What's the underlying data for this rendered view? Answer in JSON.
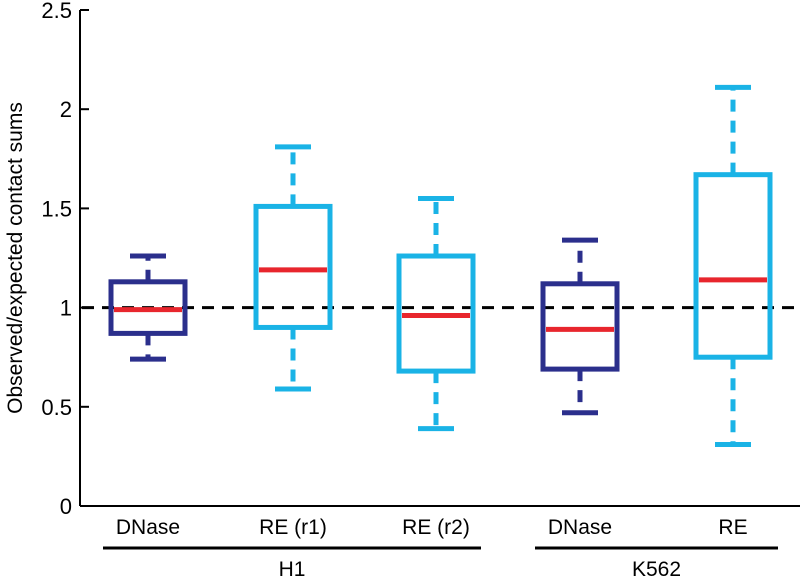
{
  "chart_data": {
    "type": "boxplot",
    "title": "",
    "xlabel": "",
    "ylabel": "Observed/expected contact sums",
    "ylim": [
      0,
      2.5
    ],
    "yticks": [
      {
        "value": 0,
        "label": "0"
      },
      {
        "value": 0.5,
        "label": "0.5"
      },
      {
        "value": 1,
        "label": "1"
      },
      {
        "value": 1.5,
        "label": "1.5"
      },
      {
        "value": 2,
        "label": "2"
      },
      {
        "value": 2.5,
        "label": "2.5"
      }
    ],
    "reference_line": {
      "value": 1,
      "style": "dashed",
      "color": "#000000"
    },
    "colors": {
      "dnase": "#2b2f8c",
      "re": "#1ab3e6",
      "median": "#e8262d",
      "axis": "#000000"
    },
    "boxes": [
      {
        "label": "DNase",
        "group": "H1",
        "color_key": "dnase",
        "whisker_low": 0.74,
        "q1": 0.87,
        "median": 0.99,
        "q3": 1.13,
        "whisker_high": 1.26
      },
      {
        "label": "RE (r1)",
        "group": "H1",
        "color_key": "re",
        "whisker_low": 0.59,
        "q1": 0.9,
        "median": 1.19,
        "q3": 1.51,
        "whisker_high": 1.81
      },
      {
        "label": "RE (r2)",
        "group": "H1",
        "color_key": "re",
        "whisker_low": 0.39,
        "q1": 0.68,
        "median": 0.96,
        "q3": 1.26,
        "whisker_high": 1.55
      },
      {
        "label": "DNase",
        "group": "K562",
        "color_key": "dnase",
        "whisker_low": 0.47,
        "q1": 0.69,
        "median": 0.89,
        "q3": 1.12,
        "whisker_high": 1.34
      },
      {
        "label": "RE",
        "group": "K562",
        "color_key": "re",
        "whisker_low": 0.31,
        "q1": 0.75,
        "median": 1.14,
        "q3": 1.67,
        "whisker_high": 2.11
      }
    ],
    "groups": [
      {
        "label": "H1",
        "boxes": [
          0,
          1,
          2
        ]
      },
      {
        "label": "K562",
        "boxes": [
          3,
          4
        ]
      }
    ]
  }
}
